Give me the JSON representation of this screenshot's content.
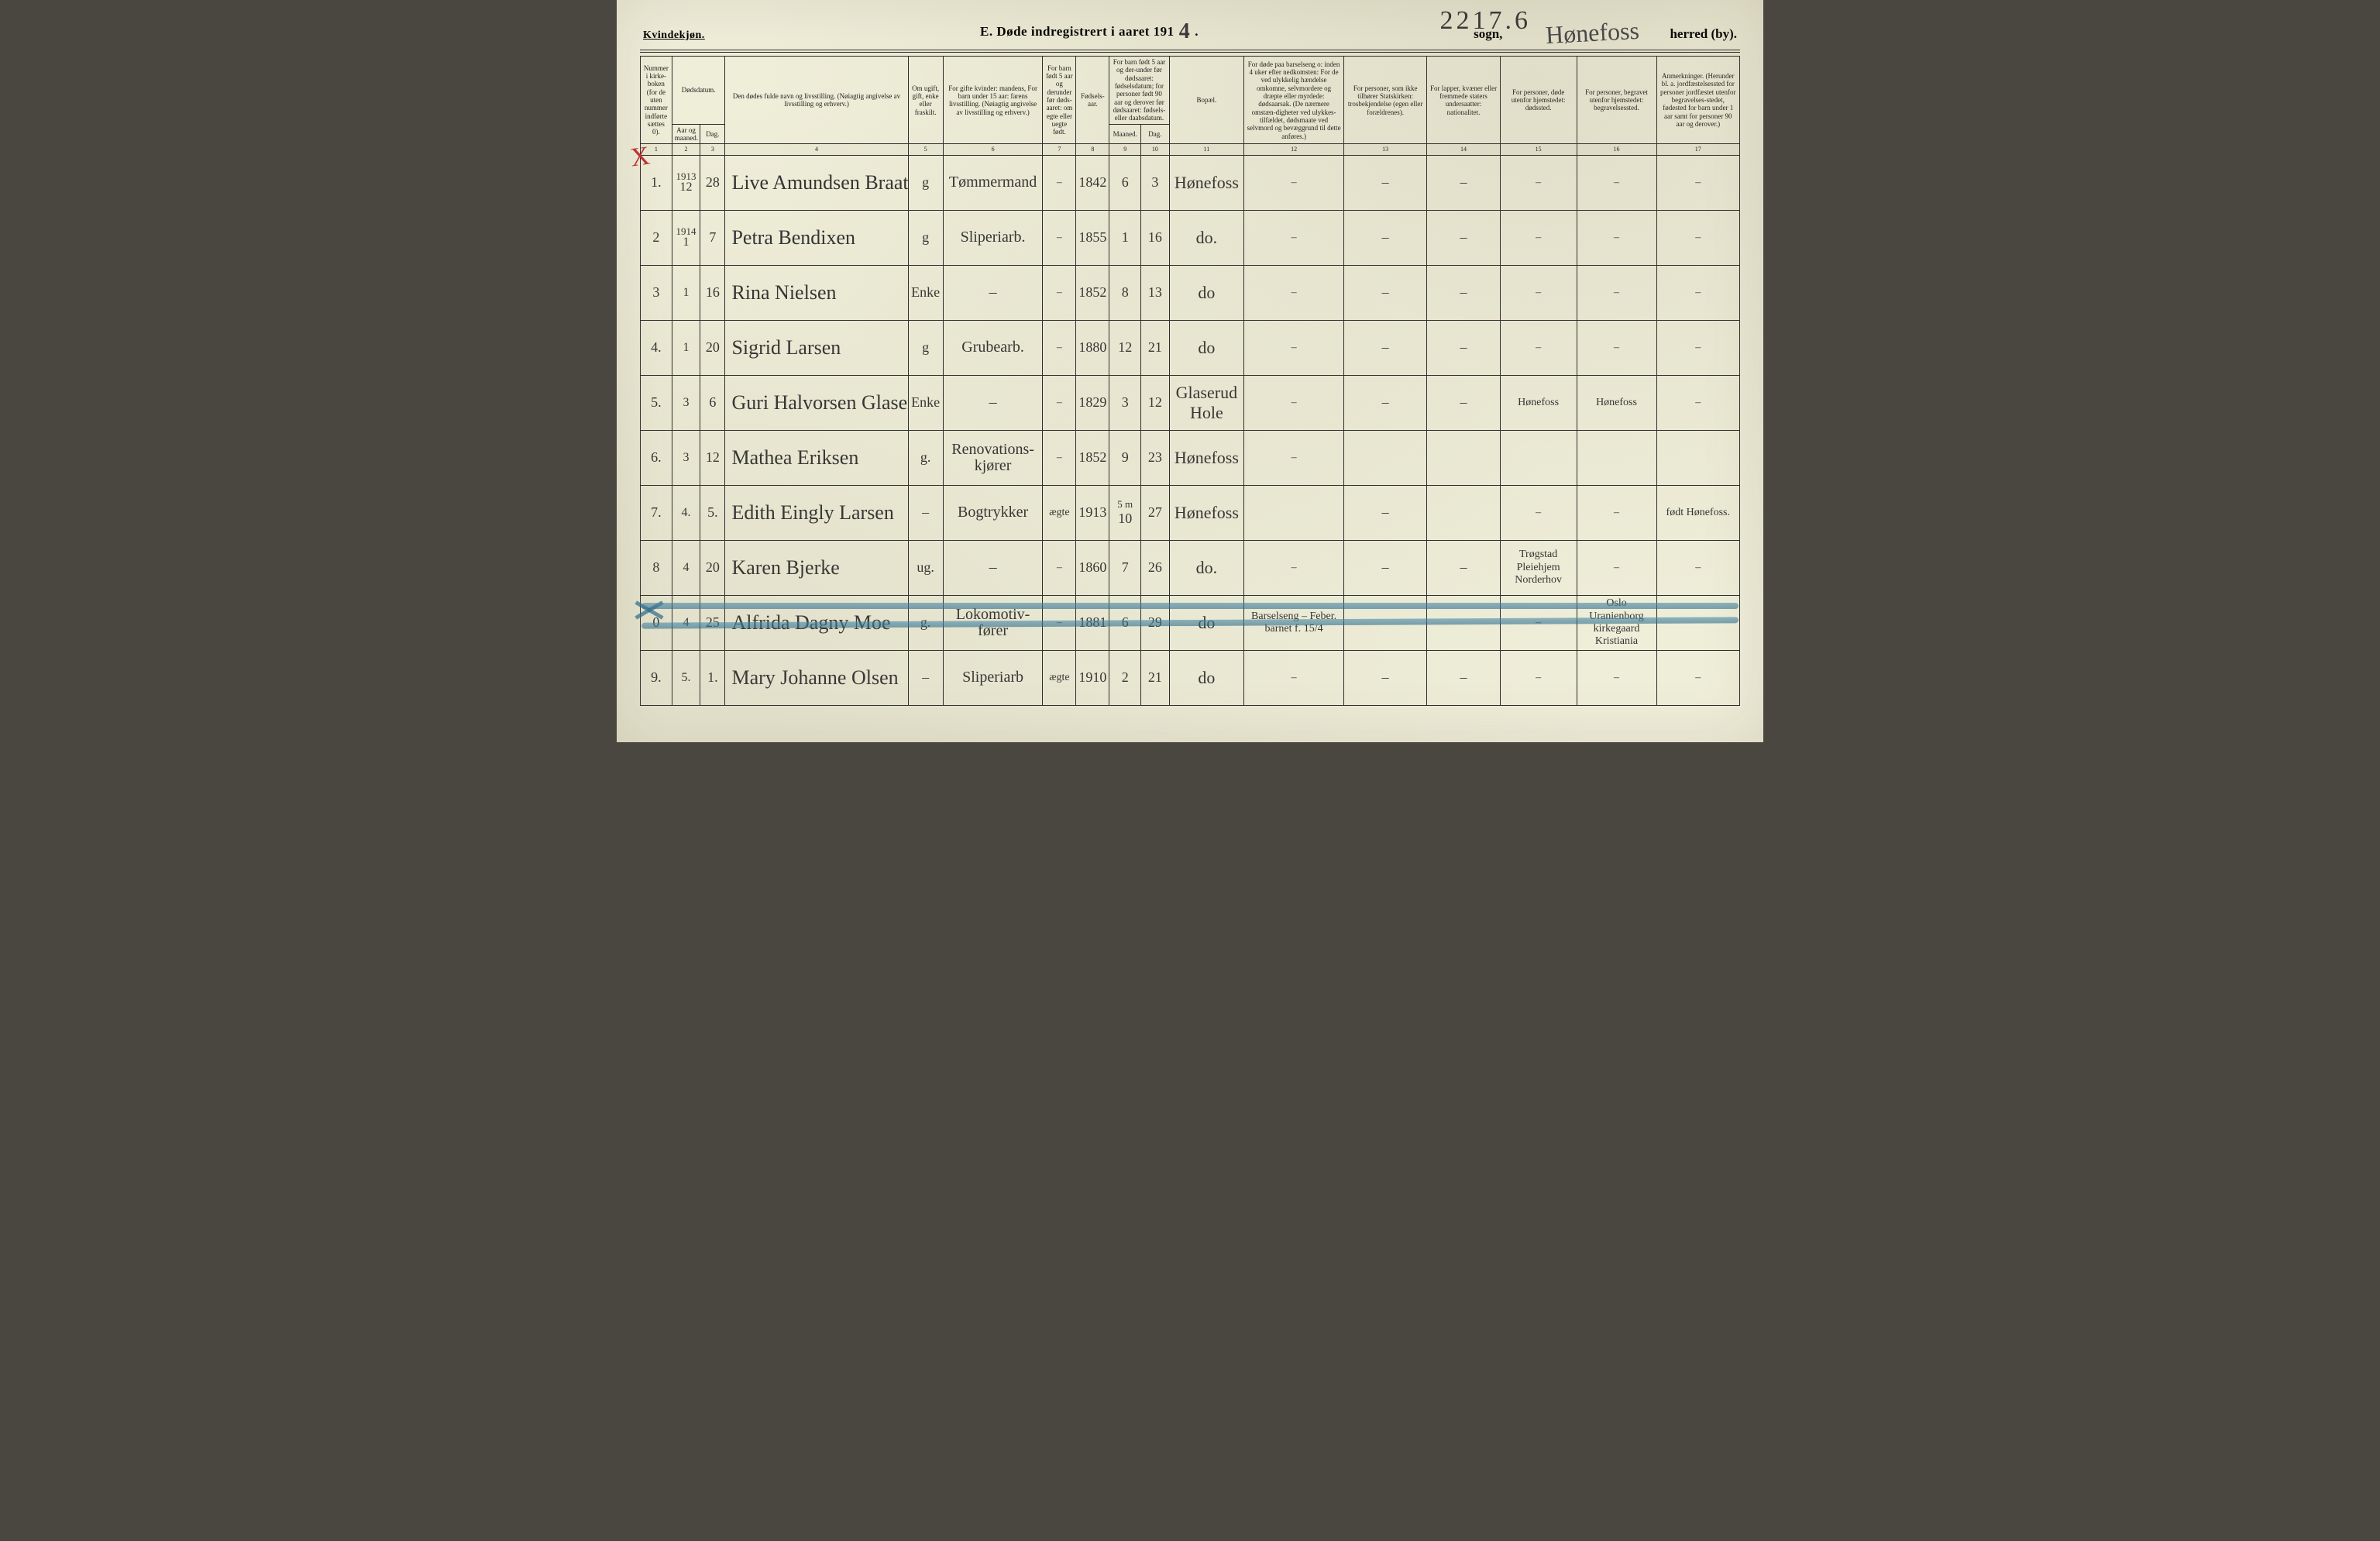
{
  "colors": {
    "paper": "#efeed9",
    "ink": "#1a1a1a",
    "handwriting": "#3a3a3a",
    "red_mark": "#b33030",
    "blue_strike": "#2d6a88"
  },
  "header": {
    "kvindekjon": "Kvindekjøn.",
    "title_prefix": "E.   Døde indregistrert i aaret 191",
    "title_year_digit": "4",
    "title_period": ".",
    "sogn_label": "sogn,",
    "herred_label": "herred (by).",
    "ref_number": "2217.6",
    "herred_handwritten": "Hønefoss"
  },
  "columns": {
    "c1": "Nummer i kirke-boken (for de uten nummer indførte sættes 0).",
    "c2": "Dødsdatum.",
    "c2a": "Aar og maaned.",
    "c2b": "Dag.",
    "c4": "Den dødes fulde navn og livsstilling. (Nøiagtig angivelse av livsstilling og erhverv.)",
    "c5": "Om ugift, gift, enke eller fraskilt.",
    "c6": "For gifte kvinder: mandens, For barn under 15 aar: farens livsstilling. (Nøiagtig angivelse av livsstilling og erhverv.)",
    "c7": "For barn født 5 aar og derunder før døds-aaret: om egte eller uegte født.",
    "c8": "Fødsels-aar.",
    "c9_10": "For barn født 5 aar og der-under før dødsaaret: fødselsdatum; for personer født 90 aar og derover før dødsaaret: fødsels- eller daabsdatum.",
    "c9": "Maaned.",
    "c10": "Dag.",
    "c11": "Bopæl.",
    "c12": "For døde paa barselseng o: inden 4 uker efter nedkomsten: For de ved ulykkelig hændelse omkomne, selvmordere og dræpte eller myrdede: dødsaarsak. (De nærmere omstæn-digheter ved ulykkes-tilfældet, dødsmaate ved selvmord og bevæggrund til dette anføres.)",
    "c13": "For personer, som ikke tilhører Statskirken: trosbekjendelse (egen eller forældrenes).",
    "c14": "For lapper, kvæner eller fremmede staters undersaatter: nationalitet.",
    "c15": "For personer, døde utenfor hjemstedet: dødssted.",
    "c16": "For personer, begravet utenfor hjemstedet: begravelsessted.",
    "c17": "Anmerkninger. (Herunder bl. a. jordfæstelsessted for personer jordfæstet utenfor begravelses-stedet, fødested for barn under 1 aar samt for personer 90 aar og derover.)"
  },
  "colnums": [
    "1",
    "2",
    "3",
    "4",
    "5",
    "6",
    "7",
    "8",
    "9",
    "10",
    "11",
    "12",
    "13",
    "14",
    "15",
    "16",
    "17"
  ],
  "rows": [
    {
      "num": "1.",
      "year_month_top": "1913",
      "year_month_bot": "12",
      "day": "28",
      "name": "Live Amundsen Braaten",
      "status": "g",
      "occ": "Tømmermand",
      "legit": "–",
      "birthyear": "1842",
      "bm": "6",
      "bd": "3",
      "place": "Hønefoss",
      "c12": "–",
      "c13": "–",
      "c14": "–",
      "c15": "–",
      "c16": "–",
      "c17": "–",
      "red_x": true
    },
    {
      "num": "2",
      "year_month_top": "1914",
      "year_month_bot": "1",
      "day": "7",
      "name": "Petra Bendixen",
      "status": "g",
      "occ": "Sliperiarb.",
      "legit": "–",
      "birthyear": "1855",
      "bm": "1",
      "bd": "16",
      "place": "do.",
      "c12": "–",
      "c13": "–",
      "c14": "–",
      "c15": "–",
      "c16": "–",
      "c17": "–"
    },
    {
      "num": "3",
      "year_month_top": "",
      "year_month_bot": "1",
      "day": "16",
      "name": "Rina Nielsen",
      "status": "Enke",
      "occ": "–",
      "legit": "–",
      "birthyear": "1852",
      "bm": "8",
      "bd": "13",
      "place": "do",
      "c12": "–",
      "c13": "–",
      "c14": "–",
      "c15": "–",
      "c16": "–",
      "c17": "–"
    },
    {
      "num": "4.",
      "year_month_top": "",
      "year_month_bot": "1",
      "day": "20",
      "name": "Sigrid Larsen",
      "status": "g",
      "occ": "Grubearb.",
      "legit": "–",
      "birthyear": "1880",
      "bm": "12",
      "bd": "21",
      "place": "do",
      "c12": "–",
      "c13": "–",
      "c14": "–",
      "c15": "–",
      "c16": "–",
      "c17": "–"
    },
    {
      "num": "5.",
      "year_month_top": "",
      "year_month_bot": "3",
      "day": "6",
      "name": "Guri Halvorsen Glaserud",
      "status": "Enke",
      "occ": "–",
      "legit": "–",
      "birthyear": "1829",
      "bm": "3",
      "bd": "12",
      "place": "Glaserud Hole",
      "c12": "–",
      "c13": "–",
      "c14": "–",
      "c15": "Hønefoss",
      "c16": "Hønefoss",
      "c17": "–"
    },
    {
      "num": "6.",
      "year_month_top": "",
      "year_month_bot": "3",
      "day": "12",
      "name": "Mathea Eriksen",
      "status": "g.",
      "occ": "Renovations-kjører",
      "legit": "–",
      "birthyear": "1852",
      "bm": "9",
      "bd": "23",
      "place": "Hønefoss",
      "c12": "–",
      "c13": "",
      "c14": "",
      "c15": "",
      "c16": "",
      "c17": ""
    },
    {
      "num": "7.",
      "year_month_top": "",
      "year_month_bot": "4.",
      "day": "5.",
      "name": "Edith Eingly Larsen",
      "status": "–",
      "occ": "Bogtrykker",
      "legit": "ægte",
      "birthyear": "1913",
      "bm": "10",
      "bd": "27",
      "bm_note": "5 m",
      "place": "Hønefoss",
      "c12": "",
      "c13": "–",
      "c14": "",
      "c15": "–",
      "c16": "–",
      "c17": "født Hønefoss."
    },
    {
      "num": "8",
      "year_month_top": "",
      "year_month_bot": "4",
      "day": "20",
      "name": "Karen Bjerke",
      "status": "ug.",
      "occ": "–",
      "legit": "–",
      "birthyear": "1860",
      "bm": "7",
      "bd": "26",
      "place": "do.",
      "c12": "–",
      "c13": "–",
      "c14": "–",
      "c15": "Trøgstad Pleiehjem Norderhov",
      "c16": "–",
      "c17": "–"
    },
    {
      "num": "0",
      "year_month_top": "",
      "year_month_bot": "4",
      "day": "25",
      "name": "Alfrida Dagny Moe",
      "status": "g.",
      "occ": "Lokomotiv-fører",
      "legit": "–",
      "birthyear": "1881",
      "bm": "6",
      "bd": "29",
      "place": "do",
      "c12": "Barselseng – Feber.  barnet f. 15/4",
      "c13": "",
      "c14": "",
      "c15": "–",
      "c16": "Oslo Uranienborg kirkegaard Kristiania",
      "c17": "",
      "struck": true
    },
    {
      "num": "9.",
      "year_month_top": "",
      "year_month_bot": "5.",
      "day": "1.",
      "name": "Mary Johanne Olsen",
      "status": "–",
      "occ": "Sliperiarb",
      "legit": "ægte",
      "birthyear": "1910",
      "bm": "2",
      "bd": "21",
      "place": "do",
      "c12": "–",
      "c13": "–",
      "c14": "–",
      "c15": "–",
      "c16": "–",
      "c17": "–"
    }
  ]
}
